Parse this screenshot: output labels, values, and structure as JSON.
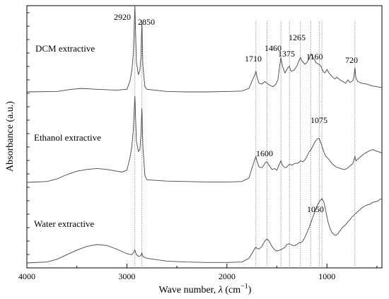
{
  "chart_data": {
    "type": "line",
    "xlabel_prefix": "Wave number, ",
    "xlabel_lambda": "λ",
    "xlabel_unit_open": " (cm",
    "xlabel_unit_exp": "−1",
    "xlabel_unit_close": ")",
    "ylabel": "Absorbance (a.u.)",
    "xlim": [
      4000,
      450
    ],
    "x_reversed": true,
    "grid": false,
    "x_ticks": [
      4000,
      3000,
      2000,
      1000
    ],
    "x_tick_labels": [
      "4000",
      "3000",
      "2000",
      "1000"
    ],
    "series": [
      {
        "name": "DCM extractive",
        "points": [
          [
            4000,
            0.0
          ],
          [
            3700,
            0.005
          ],
          [
            3550,
            0.03
          ],
          [
            3450,
            0.04
          ],
          [
            3300,
            0.03
          ],
          [
            3100,
            0.02
          ],
          [
            3000,
            0.03
          ],
          [
            2970,
            0.12
          ],
          [
            2950,
            0.25
          ],
          [
            2935,
            0.45
          ],
          [
            2920,
            1.0
          ],
          [
            2905,
            0.35
          ],
          [
            2885,
            0.2
          ],
          [
            2870,
            0.25
          ],
          [
            2860,
            0.4
          ],
          [
            2850,
            0.82
          ],
          [
            2840,
            0.3
          ],
          [
            2820,
            0.06
          ],
          [
            2800,
            0.03
          ],
          [
            2600,
            0.005
          ],
          [
            2400,
            0.0
          ],
          [
            2200,
            0.0
          ],
          [
            2000,
            0.005
          ],
          [
            1850,
            0.01
          ],
          [
            1780,
            0.04
          ],
          [
            1740,
            0.15
          ],
          [
            1720,
            0.2
          ],
          [
            1710,
            0.24
          ],
          [
            1700,
            0.18
          ],
          [
            1680,
            0.1
          ],
          [
            1650,
            0.09
          ],
          [
            1620,
            0.12
          ],
          [
            1600,
            0.1
          ],
          [
            1575,
            0.08
          ],
          [
            1540,
            0.06
          ],
          [
            1510,
            0.09
          ],
          [
            1490,
            0.14
          ],
          [
            1470,
            0.32
          ],
          [
            1460,
            0.4
          ],
          [
            1445,
            0.3
          ],
          [
            1420,
            0.22
          ],
          [
            1400,
            0.26
          ],
          [
            1390,
            0.28
          ],
          [
            1375,
            0.3
          ],
          [
            1360,
            0.24
          ],
          [
            1330,
            0.25
          ],
          [
            1300,
            0.3
          ],
          [
            1280,
            0.36
          ],
          [
            1265,
            0.4
          ],
          [
            1250,
            0.36
          ],
          [
            1220,
            0.32
          ],
          [
            1200,
            0.34
          ],
          [
            1180,
            0.38
          ],
          [
            1160,
            0.44
          ],
          [
            1140,
            0.4
          ],
          [
            1110,
            0.34
          ],
          [
            1080,
            0.32
          ],
          [
            1060,
            0.3
          ],
          [
            1040,
            0.24
          ],
          [
            1020,
            0.22
          ],
          [
            1000,
            0.26
          ],
          [
            980,
            0.22
          ],
          [
            950,
            0.18
          ],
          [
            920,
            0.15
          ],
          [
            900,
            0.17
          ],
          [
            870,
            0.14
          ],
          [
            840,
            0.12
          ],
          [
            810,
            0.1
          ],
          [
            790,
            0.14
          ],
          [
            770,
            0.11
          ],
          [
            740,
            0.13
          ],
          [
            730,
            0.18
          ],
          [
            720,
            0.28
          ],
          [
            710,
            0.16
          ],
          [
            690,
            0.12
          ],
          [
            650,
            0.1
          ],
          [
            600,
            0.09
          ],
          [
            550,
            0.07
          ],
          [
            500,
            0.06
          ],
          [
            450,
            0.05
          ]
        ]
      },
      {
        "name": "Ethanol extractive",
        "points": [
          [
            4000,
            0.0
          ],
          [
            3800,
            0.01
          ],
          [
            3700,
            0.04
          ],
          [
            3600,
            0.09
          ],
          [
            3500,
            0.13
          ],
          [
            3400,
            0.15
          ],
          [
            3300,
            0.16
          ],
          [
            3200,
            0.15
          ],
          [
            3100,
            0.13
          ],
          [
            3050,
            0.12
          ],
          [
            3000,
            0.14
          ],
          [
            2970,
            0.28
          ],
          [
            2950,
            0.42
          ],
          [
            2935,
            0.62
          ],
          [
            2920,
            1.0
          ],
          [
            2905,
            0.48
          ],
          [
            2885,
            0.36
          ],
          [
            2870,
            0.38
          ],
          [
            2860,
            0.55
          ],
          [
            2850,
            0.86
          ],
          [
            2840,
            0.42
          ],
          [
            2820,
            0.08
          ],
          [
            2800,
            0.03
          ],
          [
            2600,
            0.015
          ],
          [
            2400,
            0.01
          ],
          [
            2200,
            0.005
          ],
          [
            2000,
            0.005
          ],
          [
            1850,
            0.01
          ],
          [
            1780,
            0.05
          ],
          [
            1740,
            0.2
          ],
          [
            1720,
            0.27
          ],
          [
            1710,
            0.3
          ],
          [
            1700,
            0.25
          ],
          [
            1680,
            0.18
          ],
          [
            1650,
            0.17
          ],
          [
            1630,
            0.2
          ],
          [
            1615,
            0.23
          ],
          [
            1600,
            0.24
          ],
          [
            1580,
            0.2
          ],
          [
            1550,
            0.15
          ],
          [
            1520,
            0.16
          ],
          [
            1500,
            0.14
          ],
          [
            1480,
            0.2
          ],
          [
            1460,
            0.25
          ],
          [
            1445,
            0.2
          ],
          [
            1420,
            0.17
          ],
          [
            1400,
            0.18
          ],
          [
            1375,
            0.21
          ],
          [
            1350,
            0.2
          ],
          [
            1320,
            0.22
          ],
          [
            1300,
            0.22
          ],
          [
            1280,
            0.23
          ],
          [
            1265,
            0.25
          ],
          [
            1240,
            0.24
          ],
          [
            1220,
            0.26
          ],
          [
            1200,
            0.3
          ],
          [
            1180,
            0.35
          ],
          [
            1160,
            0.38
          ],
          [
            1140,
            0.42
          ],
          [
            1120,
            0.47
          ],
          [
            1100,
            0.5
          ],
          [
            1080,
            0.51
          ],
          [
            1070,
            0.49
          ],
          [
            1050,
            0.42
          ],
          [
            1030,
            0.35
          ],
          [
            1010,
            0.3
          ],
          [
            990,
            0.28
          ],
          [
            970,
            0.25
          ],
          [
            950,
            0.22
          ],
          [
            930,
            0.2
          ],
          [
            910,
            0.18
          ],
          [
            890,
            0.17
          ],
          [
            860,
            0.16
          ],
          [
            840,
            0.15
          ],
          [
            820,
            0.15
          ],
          [
            800,
            0.16
          ],
          [
            780,
            0.18
          ],
          [
            760,
            0.2
          ],
          [
            740,
            0.22
          ],
          [
            730,
            0.26
          ],
          [
            720,
            0.3
          ],
          [
            710,
            0.25
          ],
          [
            690,
            0.27
          ],
          [
            660,
            0.3
          ],
          [
            630,
            0.33
          ],
          [
            600,
            0.35
          ],
          [
            570,
            0.37
          ],
          [
            540,
            0.38
          ],
          [
            500,
            0.36
          ],
          [
            470,
            0.35
          ],
          [
            450,
            0.34
          ]
        ]
      },
      {
        "name": "Water extractive",
        "points": [
          [
            4000,
            0.0
          ],
          [
            3800,
            0.01
          ],
          [
            3700,
            0.04
          ],
          [
            3600,
            0.09
          ],
          [
            3500,
            0.14
          ],
          [
            3400,
            0.18
          ],
          [
            3300,
            0.2
          ],
          [
            3200,
            0.19
          ],
          [
            3100,
            0.15
          ],
          [
            3000,
            0.1
          ],
          [
            2950,
            0.09
          ],
          [
            2930,
            0.12
          ],
          [
            2920,
            0.14
          ],
          [
            2905,
            0.09
          ],
          [
            2880,
            0.07
          ],
          [
            2860,
            0.08
          ],
          [
            2850,
            0.11
          ],
          [
            2840,
            0.07
          ],
          [
            2800,
            0.05
          ],
          [
            2600,
            0.02
          ],
          [
            2400,
            0.01
          ],
          [
            2200,
            0.005
          ],
          [
            2000,
            0.005
          ],
          [
            1850,
            0.01
          ],
          [
            1780,
            0.05
          ],
          [
            1740,
            0.12
          ],
          [
            1720,
            0.16
          ],
          [
            1710,
            0.17
          ],
          [
            1700,
            0.16
          ],
          [
            1680,
            0.15
          ],
          [
            1650,
            0.18
          ],
          [
            1620,
            0.24
          ],
          [
            1600,
            0.26
          ],
          [
            1580,
            0.24
          ],
          [
            1550,
            0.18
          ],
          [
            1520,
            0.14
          ],
          [
            1500,
            0.13
          ],
          [
            1470,
            0.14
          ],
          [
            1450,
            0.15
          ],
          [
            1420,
            0.17
          ],
          [
            1400,
            0.2
          ],
          [
            1380,
            0.21
          ],
          [
            1360,
            0.2
          ],
          [
            1340,
            0.19
          ],
          [
            1320,
            0.19
          ],
          [
            1300,
            0.2
          ],
          [
            1280,
            0.22
          ],
          [
            1260,
            0.22
          ],
          [
            1240,
            0.24
          ],
          [
            1220,
            0.28
          ],
          [
            1200,
            0.33
          ],
          [
            1180,
            0.38
          ],
          [
            1160,
            0.44
          ],
          [
            1140,
            0.5
          ],
          [
            1120,
            0.56
          ],
          [
            1100,
            0.62
          ],
          [
            1075,
            0.67
          ],
          [
            1050,
            0.7
          ],
          [
            1030,
            0.66
          ],
          [
            1010,
            0.56
          ],
          [
            990,
            0.45
          ],
          [
            970,
            0.38
          ],
          [
            950,
            0.33
          ],
          [
            930,
            0.31
          ],
          [
            910,
            0.3
          ],
          [
            890,
            0.32
          ],
          [
            870,
            0.35
          ],
          [
            850,
            0.38
          ],
          [
            830,
            0.4
          ],
          [
            810,
            0.42
          ],
          [
            790,
            0.45
          ],
          [
            770,
            0.47
          ],
          [
            750,
            0.5
          ],
          [
            730,
            0.52
          ],
          [
            720,
            0.53
          ],
          [
            700,
            0.55
          ],
          [
            680,
            0.57
          ],
          [
            650,
            0.6
          ],
          [
            620,
            0.62
          ],
          [
            600,
            0.63
          ],
          [
            570,
            0.64
          ],
          [
            540,
            0.66
          ],
          [
            500,
            0.67
          ],
          [
            470,
            0.69
          ],
          [
            450,
            0.7
          ]
        ]
      }
    ],
    "peak_lines": [
      2920,
      2850,
      1710,
      1600,
      1460,
      1375,
      1265,
      1160,
      1075,
      1050,
      720
    ],
    "annotations": [
      "2920",
      "2850",
      "1710",
      "1460",
      "1375",
      "1265",
      "1160",
      "720",
      "1600",
      "1075",
      "1050"
    ]
  }
}
